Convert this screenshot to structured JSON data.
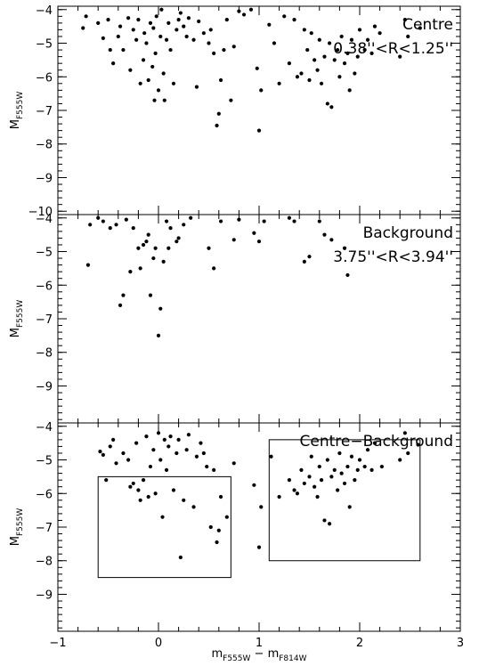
{
  "chart_data": [
    {
      "type": "scatter",
      "title": "",
      "annotation": [
        "Centre",
        "0.38''<R<1.25''"
      ],
      "xlabel": "",
      "ylabel": "M_F555W",
      "ylabel_main": "M",
      "ylabel_sub": "F555W",
      "xlim": [
        -1,
        3
      ],
      "ylim": [
        -3.9,
        -10.1
      ],
      "yticks": [
        -4,
        -5,
        -6,
        -7,
        -8,
        -9,
        -10
      ],
      "ytick_labels": [
        "−4",
        "−5",
        "−6",
        "−7",
        "−8",
        "−9",
        "−10"
      ],
      "xticks": [
        -1,
        0,
        1,
        2,
        3
      ],
      "points": [
        [
          -0.75,
          -4.55
        ],
        [
          -0.72,
          -4.2
        ],
        [
          -0.6,
          -4.4
        ],
        [
          -0.55,
          -4.85
        ],
        [
          -0.5,
          -4.3
        ],
        [
          -0.48,
          -5.2
        ],
        [
          -0.45,
          -5.6
        ],
        [
          -0.4,
          -4.8
        ],
        [
          -0.38,
          -4.5
        ],
        [
          -0.35,
          -5.2
        ],
        [
          -0.3,
          -4.25
        ],
        [
          -0.28,
          -5.8
        ],
        [
          -0.25,
          -4.6
        ],
        [
          -0.22,
          -4.9
        ],
        [
          -0.2,
          -4.3
        ],
        [
          -0.18,
          -6.2
        ],
        [
          -0.15,
          -5.5
        ],
        [
          -0.14,
          -4.7
        ],
        [
          -0.12,
          -5.0
        ],
        [
          -0.1,
          -6.1
        ],
        [
          -0.08,
          -4.4
        ],
        [
          -0.06,
          -5.7
        ],
        [
          -0.05,
          -4.55
        ],
        [
          -0.04,
          -6.7
        ],
        [
          -0.03,
          -5.3
        ],
        [
          -0.02,
          -4.2
        ],
        [
          0.0,
          -6.4
        ],
        [
          0.02,
          -4.8
        ],
        [
          0.03,
          -4.0
        ],
        [
          0.05,
          -5.9
        ],
        [
          0.06,
          -6.7
        ],
        [
          0.08,
          -4.9
        ],
        [
          0.1,
          -4.4
        ],
        [
          0.12,
          -5.2
        ],
        [
          0.15,
          -6.2
        ],
        [
          0.18,
          -4.6
        ],
        [
          0.2,
          -4.3
        ],
        [
          0.22,
          -4.1
        ],
        [
          0.25,
          -4.5
        ],
        [
          0.28,
          -4.8
        ],
        [
          0.3,
          -4.25
        ],
        [
          0.35,
          -4.9
        ],
        [
          0.38,
          -6.3
        ],
        [
          0.4,
          -4.35
        ],
        [
          0.45,
          -4.7
        ],
        [
          0.5,
          -5.0
        ],
        [
          0.52,
          -4.6
        ],
        [
          0.55,
          -5.3
        ],
        [
          0.58,
          -7.45
        ],
        [
          0.6,
          -7.1
        ],
        [
          0.62,
          -6.1
        ],
        [
          0.65,
          -5.2
        ],
        [
          0.68,
          -4.3
        ],
        [
          0.72,
          -6.7
        ],
        [
          0.75,
          -5.1
        ],
        [
          0.8,
          -4.05
        ],
        [
          0.85,
          -4.15
        ],
        [
          0.92,
          -4.0
        ],
        [
          0.98,
          -5.75
        ],
        [
          1.0,
          -7.6
        ],
        [
          1.02,
          -6.4
        ],
        [
          1.1,
          -4.45
        ],
        [
          1.15,
          -5.0
        ],
        [
          1.2,
          -6.2
        ],
        [
          1.25,
          -4.2
        ],
        [
          1.3,
          -5.6
        ],
        [
          1.35,
          -4.3
        ],
        [
          1.38,
          -6.0
        ],
        [
          1.42,
          -5.9
        ],
        [
          1.45,
          -4.6
        ],
        [
          1.48,
          -5.2
        ],
        [
          1.5,
          -6.1
        ],
        [
          1.52,
          -4.7
        ],
        [
          1.55,
          -5.5
        ],
        [
          1.58,
          -5.8
        ],
        [
          1.6,
          -4.9
        ],
        [
          1.62,
          -6.2
        ],
        [
          1.65,
          -5.4
        ],
        [
          1.68,
          -6.8
        ],
        [
          1.7,
          -5.0
        ],
        [
          1.72,
          -6.9
        ],
        [
          1.75,
          -5.5
        ],
        [
          1.78,
          -5.2
        ],
        [
          1.8,
          -6.0
        ],
        [
          1.82,
          -4.8
        ],
        [
          1.85,
          -5.6
        ],
        [
          1.88,
          -5.3
        ],
        [
          1.9,
          -6.4
        ],
        [
          1.92,
          -4.9
        ],
        [
          1.95,
          -5.9
        ],
        [
          1.98,
          -5.4
        ],
        [
          2.0,
          -4.6
        ],
        [
          2.05,
          -5.2
        ],
        [
          2.08,
          -4.9
        ],
        [
          2.12,
          -5.3
        ],
        [
          2.15,
          -4.5
        ],
        [
          2.2,
          -4.7
        ],
        [
          2.4,
          -5.4
        ],
        [
          2.45,
          -4.3
        ],
        [
          2.48,
          -4.8
        ],
        [
          2.6,
          -4.55
        ]
      ]
    },
    {
      "type": "scatter",
      "title": "",
      "annotation": [
        "Background",
        "3.75''<R<3.94''"
      ],
      "xlabel": "",
      "ylabel": "M_F555W",
      "ylabel_main": "M",
      "ylabel_sub": "F555W",
      "xlim": [
        -1,
        3
      ],
      "ylim": [
        -3.9,
        -10.1
      ],
      "yticks": [
        -4,
        -5,
        -6,
        -7,
        -8,
        -9
      ],
      "ytick_labels": [
        "−4",
        "−5",
        "−6",
        "−7",
        "−8",
        "−9"
      ],
      "xticks": [
        -1,
        0,
        1,
        2,
        3
      ],
      "points": [
        [
          -0.7,
          -5.4
        ],
        [
          -0.68,
          -4.2
        ],
        [
          -0.6,
          -4.0
        ],
        [
          -0.55,
          -4.1
        ],
        [
          -0.48,
          -4.3
        ],
        [
          -0.42,
          -4.2
        ],
        [
          -0.38,
          -6.6
        ],
        [
          -0.35,
          -6.3
        ],
        [
          -0.32,
          -4.05
        ],
        [
          -0.28,
          -5.6
        ],
        [
          -0.25,
          -4.3
        ],
        [
          -0.2,
          -4.9
        ],
        [
          -0.18,
          -5.5
        ],
        [
          -0.15,
          -4.8
        ],
        [
          -0.12,
          -4.7
        ],
        [
          -0.1,
          -4.5
        ],
        [
          -0.08,
          -6.3
        ],
        [
          -0.05,
          -5.2
        ],
        [
          -0.03,
          -4.9
        ],
        [
          0.0,
          -7.5
        ],
        [
          0.02,
          -6.7
        ],
        [
          0.05,
          -5.3
        ],
        [
          0.08,
          -4.1
        ],
        [
          0.1,
          -4.9
        ],
        [
          0.12,
          -4.3
        ],
        [
          0.18,
          -4.7
        ],
        [
          0.2,
          -4.6
        ],
        [
          0.25,
          -4.2
        ],
        [
          0.32,
          -4.0
        ],
        [
          0.5,
          -4.9
        ],
        [
          0.55,
          -5.5
        ],
        [
          0.62,
          -4.1
        ],
        [
          0.75,
          -4.65
        ],
        [
          0.8,
          -4.05
        ],
        [
          0.95,
          -4.45
        ],
        [
          1.0,
          -4.7
        ],
        [
          1.05,
          -4.1
        ],
        [
          1.3,
          -4.0
        ],
        [
          1.35,
          -4.1
        ],
        [
          1.45,
          -5.3
        ],
        [
          1.5,
          -5.15
        ],
        [
          1.6,
          -4.1
        ],
        [
          1.65,
          -4.5
        ],
        [
          1.72,
          -4.65
        ],
        [
          1.85,
          -4.9
        ],
        [
          1.88,
          -5.7
        ]
      ]
    },
    {
      "type": "scatter",
      "title": "",
      "annotation": [
        "Centre−Background"
      ],
      "xlabel": "m_F555W − m_F814W",
      "xlabel_parts": [
        "m",
        "F555W",
        " − m",
        "F814W"
      ],
      "ylabel": "M_F555W",
      "ylabel_main": "M",
      "ylabel_sub": "F555W",
      "xlim": [
        -1,
        3
      ],
      "ylim": [
        -3.9,
        -10.1
      ],
      "yticks": [
        -4,
        -5,
        -6,
        -7,
        -8,
        -9
      ],
      "ytick_labels": [
        "−4",
        "−5",
        "−6",
        "−7",
        "−8",
        "−9"
      ],
      "xticks": [
        -1,
        0,
        1,
        2,
        3
      ],
      "xtick_labels": [
        "−1",
        "0",
        "1",
        "2",
        "3"
      ],
      "boxes": [
        {
          "x0": -0.6,
          "x1": 0.72,
          "y0": -5.5,
          "y1": -8.5
        },
        {
          "x0": 1.1,
          "x1": 2.6,
          "y0": -4.4,
          "y1": -8.0
        }
      ],
      "points": [
        [
          -0.58,
          -4.75
        ],
        [
          -0.55,
          -4.85
        ],
        [
          -0.52,
          -5.6
        ],
        [
          -0.48,
          -4.6
        ],
        [
          -0.45,
          -4.4
        ],
        [
          -0.42,
          -5.1
        ],
        [
          -0.35,
          -4.8
        ],
        [
          -0.3,
          -5.0
        ],
        [
          -0.28,
          -5.8
        ],
        [
          -0.25,
          -5.7
        ],
        [
          -0.22,
          -4.5
        ],
        [
          -0.2,
          -5.9
        ],
        [
          -0.18,
          -6.2
        ],
        [
          -0.15,
          -5.6
        ],
        [
          -0.12,
          -4.3
        ],
        [
          -0.1,
          -6.1
        ],
        [
          -0.08,
          -5.2
        ],
        [
          -0.05,
          -4.7
        ],
        [
          -0.03,
          -6.0
        ],
        [
          0.0,
          -4.2
        ],
        [
          0.02,
          -5.0
        ],
        [
          0.04,
          -6.7
        ],
        [
          0.06,
          -4.4
        ],
        [
          0.08,
          -5.3
        ],
        [
          0.1,
          -4.6
        ],
        [
          0.12,
          -4.3
        ],
        [
          0.15,
          -5.9
        ],
        [
          0.18,
          -4.8
        ],
        [
          0.2,
          -4.4
        ],
        [
          0.22,
          -7.9
        ],
        [
          0.25,
          -6.2
        ],
        [
          0.28,
          -4.7
        ],
        [
          0.3,
          -4.25
        ],
        [
          0.35,
          -6.4
        ],
        [
          0.38,
          -4.9
        ],
        [
          0.42,
          -4.5
        ],
        [
          0.45,
          -4.8
        ],
        [
          0.48,
          -5.2
        ],
        [
          0.52,
          -7.0
        ],
        [
          0.55,
          -5.3
        ],
        [
          0.58,
          -7.45
        ],
        [
          0.6,
          -7.1
        ],
        [
          0.62,
          -6.1
        ],
        [
          0.68,
          -6.7
        ],
        [
          0.75,
          -5.1
        ],
        [
          0.95,
          -5.75
        ],
        [
          1.0,
          -7.6
        ],
        [
          1.02,
          -6.4
        ],
        [
          1.12,
          -4.9
        ],
        [
          1.2,
          -6.1
        ],
        [
          1.3,
          -5.6
        ],
        [
          1.35,
          -5.9
        ],
        [
          1.38,
          -6.0
        ],
        [
          1.42,
          -5.3
        ],
        [
          1.45,
          -5.7
        ],
        [
          1.5,
          -5.5
        ],
        [
          1.52,
          -4.9
        ],
        [
          1.55,
          -5.8
        ],
        [
          1.58,
          -6.1
        ],
        [
          1.6,
          -5.2
        ],
        [
          1.62,
          -5.6
        ],
        [
          1.65,
          -6.8
        ],
        [
          1.68,
          -5.0
        ],
        [
          1.7,
          -6.9
        ],
        [
          1.72,
          -5.5
        ],
        [
          1.75,
          -5.3
        ],
        [
          1.78,
          -5.9
        ],
        [
          1.8,
          -4.8
        ],
        [
          1.82,
          -5.4
        ],
        [
          1.85,
          -5.7
        ],
        [
          1.88,
          -5.2
        ],
        [
          1.9,
          -6.4
        ],
        [
          1.92,
          -4.9
        ],
        [
          1.95,
          -5.6
        ],
        [
          1.98,
          -5.3
        ],
        [
          2.0,
          -5.0
        ],
        [
          2.05,
          -5.2
        ],
        [
          2.08,
          -4.7
        ],
        [
          2.12,
          -5.3
        ],
        [
          2.15,
          -4.5
        ],
        [
          2.22,
          -5.2
        ],
        [
          2.4,
          -5.0
        ],
        [
          2.45,
          -4.2
        ],
        [
          2.48,
          -4.8
        ],
        [
          2.58,
          -4.55
        ]
      ]
    }
  ]
}
